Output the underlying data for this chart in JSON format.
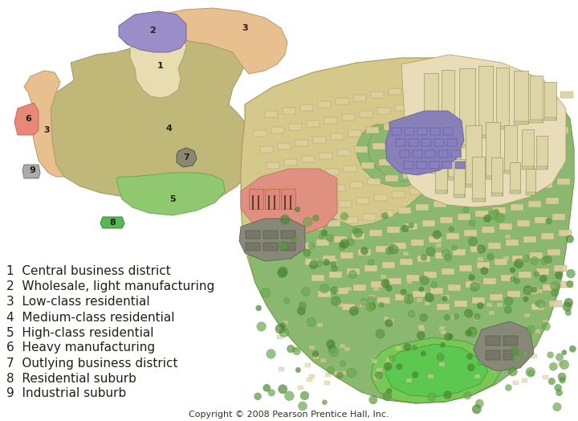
{
  "background_color": "#ffffff",
  "legend_items": [
    {
      "number": "1",
      "label": "Central business district"
    },
    {
      "number": "2",
      "label": "Wholesale, light manufacturing"
    },
    {
      "number": "3",
      "label": "Low-class residential"
    },
    {
      "number": "4",
      "label": "Medium-class residential"
    },
    {
      "number": "5",
      "label": "High-class residential"
    },
    {
      "number": "6",
      "label": "Heavy manufacturing"
    },
    {
      "number": "7",
      "label": "Outlying business district"
    },
    {
      "number": "8",
      "label": "Residential suburb"
    },
    {
      "number": "9",
      "label": "Industrial suburb"
    }
  ],
  "copyright": "Copyright © 2008 Pearson Prentice Hall, Inc.",
  "c1": "#e8ddb0",
  "c2": "#9b8dc8",
  "c3": "#e8c090",
  "c4": "#c0b878",
  "c5": "#90c870",
  "c6": "#e88878",
  "c7": "#888888",
  "c8": "#58b858",
  "c9": "#aaaaaa",
  "c_land": "#d4c88a",
  "c_green": "#8ab870",
  "c_bldg": "#ddd0a0",
  "c_purple_3d": "#8880b8"
}
